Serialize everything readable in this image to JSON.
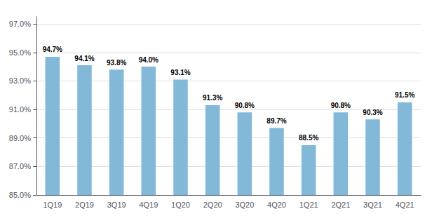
{
  "chart_data": {
    "type": "bar",
    "categories": [
      "1Q19",
      "2Q19",
      "3Q19",
      "4Q19",
      "1Q20",
      "2Q20",
      "3Q20",
      "4Q20",
      "1Q21",
      "2Q21",
      "3Q21",
      "4Q21"
    ],
    "values": [
      94.7,
      94.1,
      93.8,
      94.0,
      93.1,
      91.3,
      90.8,
      89.7,
      88.5,
      90.8,
      90.3,
      91.5
    ],
    "value_labels": [
      "94.7%",
      "94.1%",
      "93.8%",
      "94.0%",
      "93.1%",
      "91.3%",
      "90.8%",
      "89.7%",
      "88.5%",
      "90.8%",
      "90.3%",
      "91.5%"
    ],
    "data_labels": true,
    "color": "#82B8D8",
    "ylim": [
      85.0,
      97.5
    ],
    "yticks": [
      {
        "value": 85.0,
        "label": "85.0%"
      },
      {
        "value": 87.0,
        "label": "87.0%"
      },
      {
        "value": 89.0,
        "label": "89.0%"
      },
      {
        "value": 91.0,
        "label": "91.0%"
      },
      {
        "value": 93.0,
        "label": "93.0%"
      },
      {
        "value": 95.0,
        "label": "95.0%"
      },
      {
        "value": 97.0,
        "label": "97.0%"
      }
    ],
    "grid": true
  }
}
